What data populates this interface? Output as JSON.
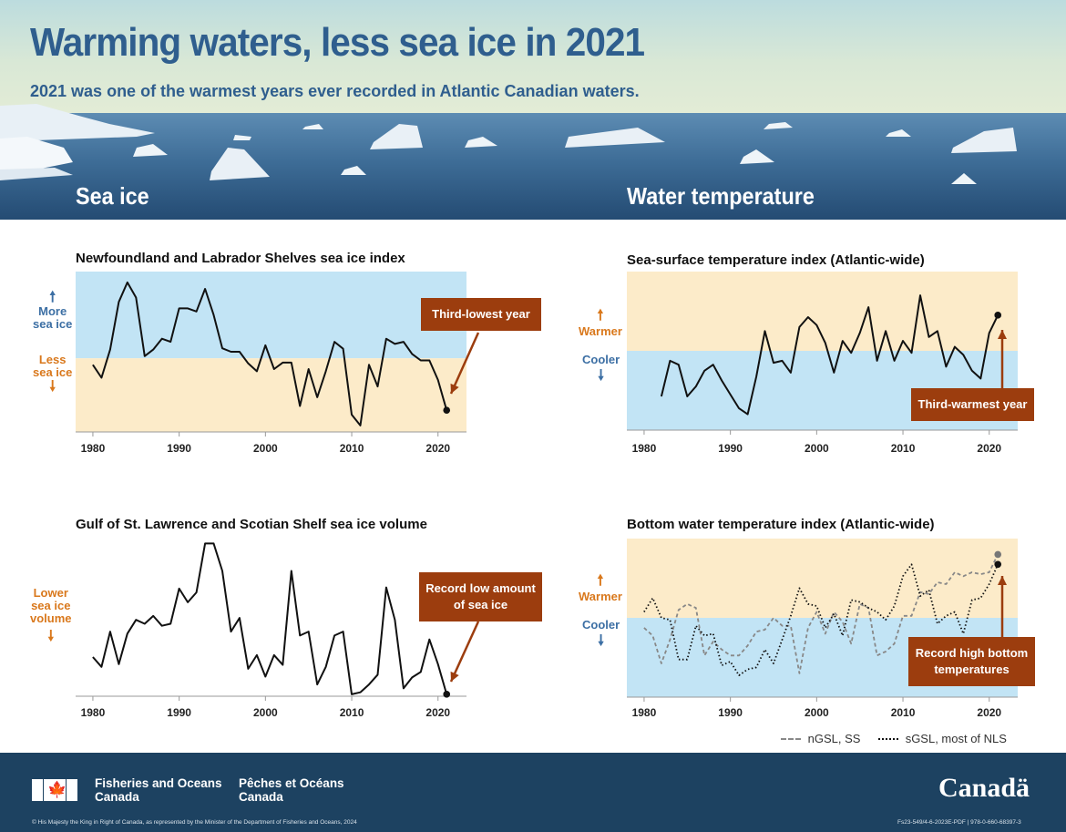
{
  "header": {
    "title": "Warming waters, less sea ice in 2021",
    "subtitle": "2021 was one of the warmest years ever recorded in Atlantic Canadian waters."
  },
  "sections": {
    "sea_ice": "Sea ice",
    "water_temp": "Water temperature"
  },
  "labels": {
    "more_sea_ice": "More\nsea ice",
    "less_sea_ice": "Less\nsea ice",
    "lower_sea_ice_volume": "Lower\nsea ice\nvolume",
    "warmer": "Warmer",
    "cooler": "Cooler",
    "warmer2": "Warmer",
    "cooler2": "Cooler"
  },
  "callouts": {
    "third_lowest": "Third-lowest year",
    "record_low": "Record low amount\nof sea ice",
    "third_warmest": "Third-warmest year",
    "record_high": "Record high bottom\ntemperatures"
  },
  "legend": {
    "ngsl": "nGSL, SS",
    "sgsl": "sGSL, most of NLS"
  },
  "footer": {
    "dept_en": "Fisheries and Oceans\nCanada",
    "dept_fr": "Pêches et Océans\nCanada",
    "wordmark": "Canadä",
    "copyright": "© His Majesty the King in Right of Canada, as represented by the Minister of the Department of Fisheries and Oceans, 2024",
    "catalogue": "Fs23-549/4-6-2023E-PDF | 978-0-660-68397-3"
  },
  "colors": {
    "band_blue": "#c2e4f5",
    "band_tan": "#fcebc9",
    "accent_blue": "#3c6fa4",
    "accent_orange": "#d9781c",
    "callout": "#9c3d0e",
    "footer": "#1d4261"
  },
  "chart_data": [
    {
      "id": "nl_ice",
      "type": "line",
      "title": "Newfoundland and Labrador Shelves sea ice index",
      "xticks": [
        1980,
        1990,
        2000,
        2010,
        2020
      ],
      "xlim": [
        1978,
        2023.3
      ],
      "ylim": [
        -1.7,
        2.0
      ],
      "bands": [
        {
          "from": 0,
          "to": 2.0,
          "color": "#c2e4f5"
        },
        {
          "from": -1.7,
          "to": 0,
          "color": "#fcebc9"
        }
      ],
      "highlight": {
        "x": 2021,
        "label": "Third-lowest year"
      },
      "series": [
        {
          "style": "solid",
          "x": [
            1980,
            1981,
            1982,
            1983,
            1984,
            1985,
            1986,
            1987,
            1988,
            1989,
            1990,
            1991,
            1992,
            1993,
            1994,
            1995,
            1996,
            1997,
            1998,
            1999,
            2000,
            2001,
            2002,
            2003,
            2004,
            2005,
            2006,
            2007,
            2008,
            2009,
            2010,
            2011,
            2012,
            2013,
            2014,
            2015,
            2016,
            2017,
            2018,
            2019,
            2020,
            2021
          ],
          "y": [
            -0.15,
            -0.45,
            0.2,
            1.3,
            1.75,
            1.4,
            0.05,
            0.2,
            0.45,
            0.38,
            1.15,
            1.15,
            1.08,
            1.6,
            1.0,
            0.23,
            0.15,
            0.15,
            -0.12,
            -0.3,
            0.3,
            -0.25,
            -0.1,
            -0.1,
            -1.1,
            -0.25,
            -0.9,
            -0.3,
            0.38,
            0.22,
            -1.3,
            -1.55,
            -0.15,
            -0.65,
            0.45,
            0.33,
            0.38,
            0.1,
            -0.05,
            -0.05,
            -0.5,
            -1.2
          ]
        }
      ]
    },
    {
      "id": "gsl_ice",
      "type": "line",
      "title": "Gulf of St. Lawrence and Scotian Shelf sea ice volume",
      "xticks": [
        1980,
        1990,
        2000,
        2010,
        2020
      ],
      "xlim": [
        1978,
        2023.3
      ],
      "ylim": [
        -1.9,
        2.15
      ],
      "bands": [],
      "highlight": {
        "x": 2021,
        "label": "Record low amount of sea ice"
      },
      "series": [
        {
          "style": "solid",
          "x": [
            1980,
            1981,
            1982,
            1983,
            1984,
            1985,
            1986,
            1987,
            1988,
            1989,
            1990,
            1991,
            1992,
            1993,
            1994,
            1995,
            1996,
            1997,
            1998,
            1999,
            2000,
            2001,
            2002,
            2003,
            2004,
            2005,
            2006,
            2007,
            2008,
            2009,
            2010,
            2011,
            2012,
            2013,
            2014,
            2015,
            2016,
            2017,
            2018,
            2019,
            2020,
            2021
          ],
          "y": [
            -0.9,
            -1.15,
            -0.25,
            -1.08,
            -0.3,
            0.05,
            -0.05,
            0.15,
            -0.1,
            -0.05,
            0.85,
            0.5,
            0.75,
            2.0,
            2.0,
            1.3,
            -0.25,
            0.1,
            -1.2,
            -0.85,
            -1.4,
            -0.85,
            -1.1,
            1.3,
            -0.35,
            -0.25,
            -1.6,
            -1.15,
            -0.35,
            -0.25,
            -1.85,
            -1.8,
            -1.6,
            -1.35,
            0.88,
            0.05,
            -1.7,
            -1.42,
            -1.28,
            -0.45,
            -1.08,
            -1.85
          ]
        }
      ]
    },
    {
      "id": "sst",
      "type": "line",
      "title": "Sea-surface temperature index (Atlantic-wide)",
      "xticks": [
        1980,
        1990,
        2000,
        2010,
        2020
      ],
      "xlim": [
        1978,
        2023.3
      ],
      "ylim": [
        -2.0,
        2.0
      ],
      "bands": [
        {
          "from": 0,
          "to": 2.0,
          "color": "#fcebc9"
        },
        {
          "from": -2.0,
          "to": 0,
          "color": "#c2e4f5"
        }
      ],
      "highlight": {
        "x": 2021,
        "label": "Third-warmest year"
      },
      "series": [
        {
          "style": "solid",
          "x": [
            1982,
            1983,
            1984,
            1985,
            1986,
            1987,
            1988,
            1989,
            1990,
            1991,
            1992,
            1993,
            1994,
            1995,
            1996,
            1997,
            1998,
            1999,
            2000,
            2001,
            2002,
            2003,
            2004,
            2005,
            2006,
            2007,
            2008,
            2009,
            2010,
            2011,
            2012,
            2013,
            2014,
            2015,
            2016,
            2017,
            2018,
            2019,
            2020,
            2021
          ],
          "y": [
            -1.15,
            -0.25,
            -0.35,
            -1.15,
            -0.9,
            -0.5,
            -0.35,
            -0.75,
            -1.1,
            -1.45,
            -1.6,
            -0.65,
            0.5,
            -0.3,
            -0.25,
            -0.55,
            0.6,
            0.85,
            0.65,
            0.2,
            -0.55,
            0.25,
            -0.05,
            0.45,
            1.1,
            -0.25,
            0.5,
            -0.25,
            0.25,
            -0.05,
            1.4,
            0.35,
            0.5,
            -0.4,
            0.1,
            -0.1,
            -0.5,
            -0.7,
            0.45,
            0.9
          ]
        }
      ]
    },
    {
      "id": "bottom",
      "type": "line",
      "title": "Bottom water temperature index (Atlantic-wide)",
      "xticks": [
        1980,
        1990,
        2000,
        2010,
        2020
      ],
      "xlim": [
        1978,
        2023.3
      ],
      "ylim": [
        -2.0,
        2.0
      ],
      "bands": [
        {
          "from": 0,
          "to": 2.0,
          "color": "#fcebc9"
        },
        {
          "from": -2.0,
          "to": 0,
          "color": "#c2e4f5"
        }
      ],
      "highlight": {
        "x": 2021,
        "label": "Record high bottom temperatures"
      },
      "series": [
        {
          "name": "nGSL, SS",
          "style": "dashed",
          "color": "#888888",
          "x": [
            1980,
            1981,
            1982,
            1983,
            1984,
            1985,
            1986,
            1987,
            1988,
            1989,
            1990,
            1991,
            1992,
            1993,
            1994,
            1995,
            1996,
            1997,
            1998,
            1999,
            2000,
            2001,
            2002,
            2003,
            2004,
            2005,
            2006,
            2007,
            2008,
            2009,
            2010,
            2011,
            2012,
            2013,
            2014,
            2015,
            2016,
            2017,
            2018,
            2019,
            2020,
            2021
          ],
          "y": [
            -0.25,
            -0.45,
            -1.15,
            -0.55,
            0.2,
            0.35,
            0.25,
            -0.95,
            -0.6,
            -0.8,
            -0.95,
            -0.95,
            -0.7,
            -0.35,
            -0.3,
            0.0,
            -0.2,
            -0.2,
            -1.4,
            -0.25,
            0.15,
            -0.4,
            0.15,
            -0.1,
            -0.65,
            0.35,
            0.25,
            -0.95,
            -0.85,
            -0.65,
            0.05,
            0.05,
            0.65,
            0.6,
            0.9,
            0.85,
            1.15,
            1.05,
            1.15,
            1.1,
            1.15,
            1.6
          ]
        },
        {
          "name": "sGSL, most of NLS",
          "style": "dotted",
          "color": "#111111",
          "x": [
            1980,
            1981,
            1982,
            1983,
            1984,
            1985,
            1986,
            1987,
            1988,
            1989,
            1990,
            1991,
            1992,
            1993,
            1994,
            1995,
            1996,
            1997,
            1998,
            1999,
            2000,
            2001,
            2002,
            2003,
            2004,
            2005,
            2006,
            2007,
            2008,
            2009,
            2010,
            2011,
            2012,
            2013,
            2014,
            2015,
            2016,
            2017,
            2018,
            2019,
            2020,
            2021
          ],
          "y": [
            0.15,
            0.5,
            0.0,
            -0.05,
            -1.05,
            -1.05,
            -0.2,
            -0.45,
            -0.4,
            -1.2,
            -1.1,
            -1.45,
            -1.3,
            -1.25,
            -0.8,
            -1.15,
            -0.55,
            0.05,
            0.75,
            0.35,
            0.3,
            -0.25,
            0.1,
            -0.45,
            0.45,
            0.4,
            0.25,
            0.15,
            -0.05,
            0.3,
            1.05,
            1.35,
            0.55,
            0.7,
            -0.15,
            0.05,
            0.15,
            -0.4,
            0.45,
            0.5,
            0.85,
            1.35
          ]
        }
      ]
    }
  ]
}
